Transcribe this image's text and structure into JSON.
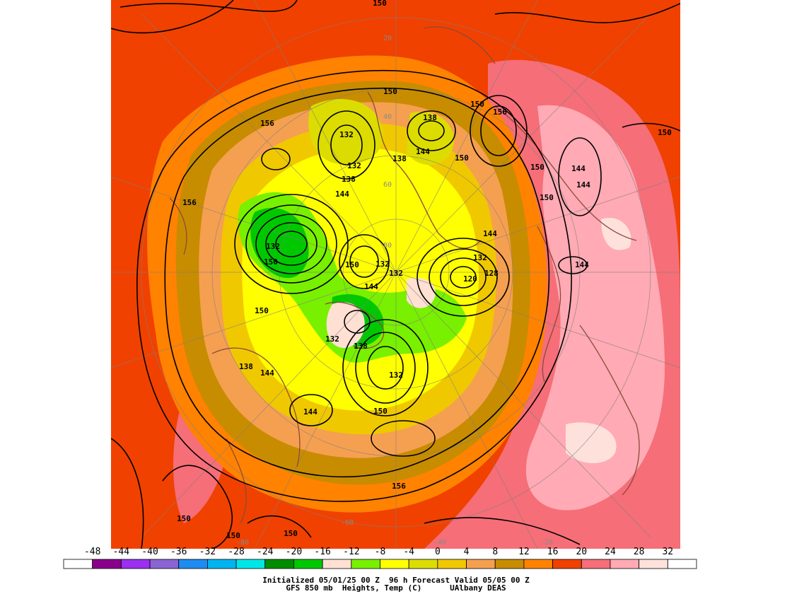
{
  "caption": {
    "line1": "Initialized 05/01/25 00 Z  96 h Forecast Valid 05/05 00 Z",
    "line2": "GFS 850 mb  Heights, Temp (C)      UAlbany DEAS"
  },
  "colorbar": {
    "ticks": [
      "-48",
      "-44",
      "-40",
      "-36",
      "-32",
      "-28",
      "-24",
      "-20",
      "-16",
      "-12",
      "-8",
      "-4",
      "0",
      "4",
      "8",
      "12",
      "16",
      "20",
      "24",
      "28",
      "32"
    ],
    "colors": [
      "#ffffff",
      "#8a008a",
      "#9b30f0",
      "#8a64d2",
      "#1e8cf0",
      "#00b4f0",
      "#00e6e6",
      "#008c00",
      "#00c800",
      "#ffe0d2",
      "#78f000",
      "#ffff00",
      "#dcdc00",
      "#f0c800",
      "#f5a050",
      "#c88c00",
      "#ff8200",
      "#f04100",
      "#f56e78",
      "#ffaab4",
      "#ffe1dc",
      "#ffffff"
    ]
  },
  "map_labels": {
    "heights": [
      "150",
      "156",
      "150",
      "156",
      "132",
      "132",
      "138",
      "138",
      "144",
      "138",
      "150",
      "144",
      "150",
      "156",
      "144",
      "144",
      "150",
      "150",
      "144",
      "132",
      "132",
      "150",
      "132",
      "144",
      "128",
      "120",
      "132",
      "144",
      "150",
      "132",
      "138",
      "138",
      "144",
      "144",
      "150",
      "132",
      "150",
      "156",
      "150",
      "150",
      "150",
      "150"
    ],
    "latitudes": [
      "20",
      "40",
      "60",
      "80",
      "-60",
      "-40",
      "-20",
      "-80"
    ]
  }
}
